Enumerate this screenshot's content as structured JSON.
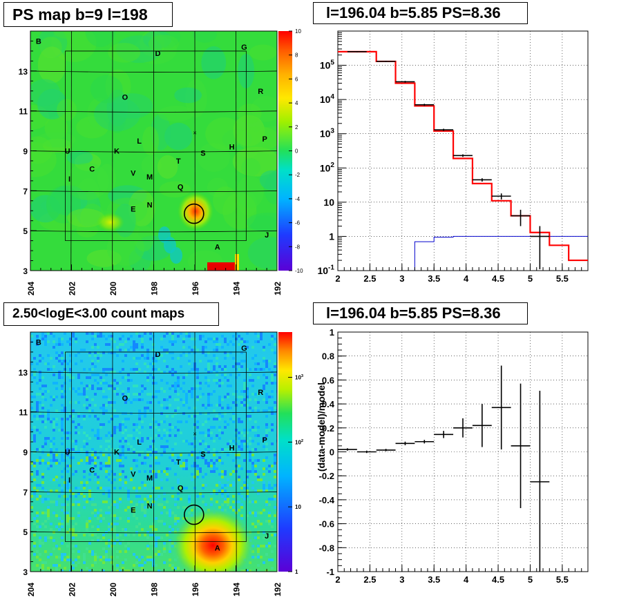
{
  "panels": {
    "map_top_title": "PS map b=9 l=198",
    "spec_title": "l=196.04 b=5.85 PS=8.36",
    "map_bottom_title": "2.50<logE<3.00 count maps",
    "resid_title": "l=196.04 b=5.85 PS=8.36"
  },
  "colors": {
    "data": "#000000",
    "model": "#ff0000",
    "background_model": "#0000cc"
  },
  "chart_data": [
    {
      "type": "heatmap",
      "name": "PS map",
      "xlim": [
        204,
        192
      ],
      "ylim": [
        3,
        15
      ],
      "x_ticks": [
        "204",
        "202",
        "200",
        "198",
        "196",
        "194",
        "192"
      ],
      "y_ticks": [
        "3",
        "5",
        "7",
        "9",
        "11",
        "13"
      ],
      "colorbar_ticks": [
        "10",
        "8",
        "6",
        "4",
        "2",
        "0",
        "-2",
        "-4",
        "-6",
        "-8",
        "-10"
      ],
      "colorbar_range": [
        -10,
        10
      ],
      "source_labels": [
        {
          "label": "B",
          "l": 203.6,
          "b": 14.5
        },
        {
          "label": "D",
          "l": 197.8,
          "b": 13.9
        },
        {
          "label": "G",
          "l": 193.6,
          "b": 14.2
        },
        {
          "label": "R",
          "l": 192.8,
          "b": 12.0
        },
        {
          "label": "O",
          "l": 199.4,
          "b": 11.7
        },
        {
          "label": "P",
          "l": 192.6,
          "b": 9.6
        },
        {
          "label": "L",
          "l": 198.7,
          "b": 9.5
        },
        {
          "label": "H",
          "l": 194.2,
          "b": 9.2
        },
        {
          "label": "U",
          "l": 202.2,
          "b": 9.0
        },
        {
          "label": "K",
          "l": 199.8,
          "b": 9.0
        },
        {
          "label": "S",
          "l": 195.6,
          "b": 8.9
        },
        {
          "label": "T",
          "l": 196.8,
          "b": 8.5
        },
        {
          "label": "C",
          "l": 201.0,
          "b": 8.1
        },
        {
          "label": "V",
          "l": 199.0,
          "b": 7.9
        },
        {
          "label": "M",
          "l": 198.2,
          "b": 7.7
        },
        {
          "label": "I",
          "l": 202.1,
          "b": 7.6
        },
        {
          "label": "Q",
          "l": 196.7,
          "b": 7.2
        },
        {
          "label": "N",
          "l": 198.2,
          "b": 6.3
        },
        {
          "label": "E",
          "l": 199.0,
          "b": 6.1
        },
        {
          "label": "J",
          "l": 192.5,
          "b": 4.8
        },
        {
          "label": "A",
          "l": 194.9,
          "b": 4.2
        }
      ],
      "source_circle": {
        "l": 196.04,
        "b": 5.85
      },
      "hotspots": [
        {
          "l": 196.04,
          "b": 5.85,
          "value": 8
        },
        {
          "l": 200.6,
          "b": 5.3,
          "value": 2
        },
        {
          "l": 194.3,
          "b": 3.2,
          "value": 10
        }
      ]
    },
    {
      "type": "line",
      "name": "spectrum",
      "title": "l=196.04 b=5.85 PS=8.36",
      "xlim": [
        2,
        5.9
      ],
      "ylim": [
        0.1,
        1000000
      ],
      "yscale": "log",
      "x_ticks": [
        "2",
        "2.5",
        "3",
        "3.5",
        "4",
        "4.5",
        "5",
        "5.5"
      ],
      "y_ticks": [
        "10^-1",
        "1",
        "10",
        "10^2",
        "10^3",
        "10^4",
        "10^5"
      ],
      "grid": true,
      "bin_edges": [
        2.0,
        2.6,
        2.9,
        3.2,
        3.5,
        3.8,
        4.1,
        4.4,
        4.7,
        5.0,
        5.3,
        5.6,
        5.9
      ],
      "data": [
        {
          "x": 2.3,
          "y": 250000,
          "err": [
            240000,
            260000
          ]
        },
        {
          "x": 2.75,
          "y": 130000,
          "err": [
            125000,
            135000
          ]
        },
        {
          "x": 3.05,
          "y": 33000,
          "err": [
            31000,
            35000
          ]
        },
        {
          "x": 3.35,
          "y": 7000,
          "err": [
            6500,
            7500
          ]
        },
        {
          "x": 3.65,
          "y": 1300,
          "err": [
            1200,
            1400
          ]
        },
        {
          "x": 3.95,
          "y": 230,
          "err": [
            210,
            250
          ]
        },
        {
          "x": 4.25,
          "y": 45,
          "err": [
            40,
            50
          ]
        },
        {
          "x": 4.55,
          "y": 15,
          "err": [
            12,
            18
          ]
        },
        {
          "x": 4.85,
          "y": 4,
          "err": [
            2,
            6
          ]
        },
        {
          "x": 5.15,
          "y": 1,
          "err": [
            0.11,
            2
          ]
        }
      ],
      "model": [
        250000,
        130000,
        30000,
        6500,
        1200,
        190,
        35,
        11,
        4,
        1.3,
        0.55,
        0.2
      ],
      "background_model": [
        null,
        null,
        null,
        0.7,
        0.95,
        1,
        1,
        1,
        1,
        1,
        1,
        1
      ]
    },
    {
      "type": "heatmap",
      "name": "count map",
      "title": "2.50<logE<3.00 count maps",
      "xlim": [
        204,
        192
      ],
      "ylim": [
        3,
        15
      ],
      "x_ticks": [
        "204",
        "202",
        "200",
        "198",
        "196",
        "194",
        "192"
      ],
      "y_ticks": [
        "3",
        "5",
        "7",
        "9",
        "11",
        "13"
      ],
      "colorbar_scale": "log",
      "colorbar_ticks": [
        "1",
        "10",
        "10^2",
        "10^3"
      ],
      "colorbar_range": [
        1,
        5000
      ],
      "source_circle": {
        "l": 196.04,
        "b": 5.85
      },
      "bright_source": {
        "label": "A",
        "l": 194.9,
        "b": 4.2
      }
    },
    {
      "type": "scatter",
      "name": "residuals",
      "title": "l=196.04 b=5.85 PS=8.36",
      "ylabel": "(data-model)/model",
      "xlim": [
        2,
        5.9
      ],
      "ylim": [
        -1,
        1
      ],
      "x_ticks": [
        "2",
        "2.5",
        "3",
        "3.5",
        "4",
        "4.5",
        "5",
        "5.5"
      ],
      "y_ticks": [
        "-1",
        "-0.8",
        "-0.6",
        "-0.4",
        "-0.2",
        "0",
        "0.2",
        "0.4",
        "0.6",
        "0.8",
        "1"
      ],
      "grid": true,
      "points": [
        {
          "x": 2.15,
          "y": 0.02,
          "xerr": 0.15,
          "yerr": 0.01
        },
        {
          "x": 2.45,
          "y": 0.0,
          "xerr": 0.15,
          "yerr": 0.01
        },
        {
          "x": 2.75,
          "y": 0.015,
          "xerr": 0.15,
          "yerr": 0.01
        },
        {
          "x": 3.05,
          "y": 0.07,
          "xerr": 0.15,
          "yerr": 0.015
        },
        {
          "x": 3.35,
          "y": 0.085,
          "xerr": 0.15,
          "yerr": 0.015
        },
        {
          "x": 3.65,
          "y": 0.145,
          "xerr": 0.15,
          "yerr": 0.03
        },
        {
          "x": 3.95,
          "y": 0.2,
          "xerr": 0.15,
          "yerr": 0.08
        },
        {
          "x": 4.25,
          "y": 0.22,
          "xerr": 0.15,
          "yerr": 0.18
        },
        {
          "x": 4.55,
          "y": 0.37,
          "xerr": 0.15,
          "yerr": 0.35
        },
        {
          "x": 4.85,
          "y": 0.05,
          "xerr": 0.15,
          "yerr": 0.52
        },
        {
          "x": 5.15,
          "y": -0.25,
          "xerr": 0.15,
          "yerr": 0.76
        }
      ]
    }
  ]
}
